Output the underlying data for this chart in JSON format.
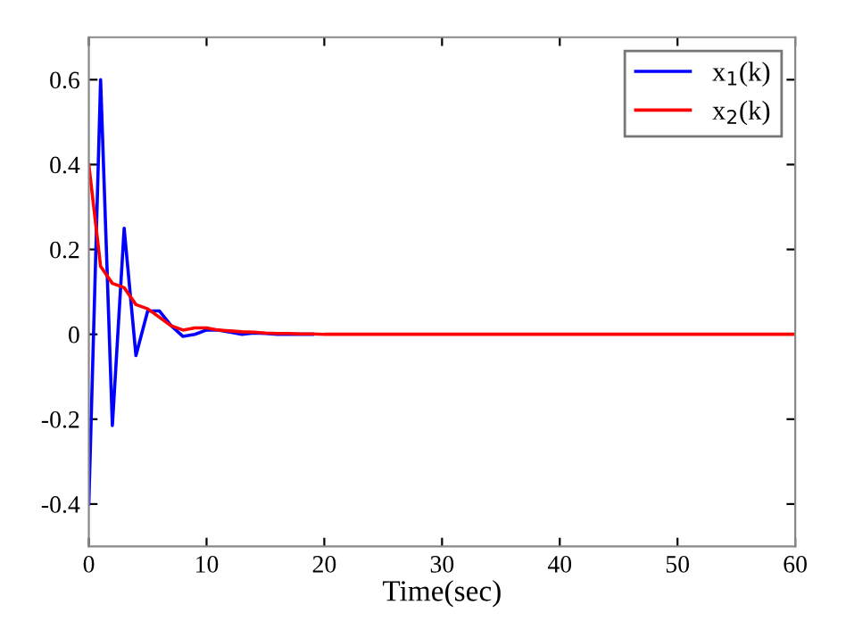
{
  "chart_data": {
    "type": "line",
    "xlabel": "Time(sec)",
    "x": [
      0,
      1,
      2,
      3,
      4,
      5,
      6,
      7,
      8,
      9,
      10,
      11,
      12,
      13,
      14,
      15,
      16,
      17,
      18,
      19,
      20,
      30,
      40,
      50,
      60
    ],
    "series": [
      {
        "name": "x$_{1}$(k)",
        "color": "#0000ff",
        "values": [
          -0.4,
          0.6,
          -0.215,
          0.25,
          -0.05,
          0.055,
          0.055,
          0.02,
          -0.005,
          0.0,
          0.01,
          0.01,
          0.005,
          0.0,
          0.003,
          0.002,
          0.0,
          0.0,
          0.0,
          0.0,
          null,
          null,
          null,
          null,
          null
        ]
      },
      {
        "name": "x$_{2}$(k)",
        "color": "#ff0000",
        "values": [
          0.4,
          0.16,
          0.12,
          0.11,
          0.07,
          0.06,
          0.04,
          0.02,
          0.01,
          0.015,
          0.015,
          0.01,
          0.008,
          0.006,
          0.005,
          0.003,
          0.002,
          0.002,
          0.001,
          0.001,
          0.0,
          0.0,
          0.0,
          0.0,
          0.0
        ]
      }
    ],
    "xlim": [
      0,
      60
    ],
    "xticks": [
      0,
      10,
      20,
      30,
      40,
      50,
      60
    ],
    "ylim": [
      -0.5,
      0.7
    ],
    "yticks": [
      -0.4,
      -0.2,
      0,
      0.2,
      0.4,
      0.6
    ],
    "grid": false,
    "legend": "top right",
    "marker": "none",
    "line_style": "solid"
  }
}
